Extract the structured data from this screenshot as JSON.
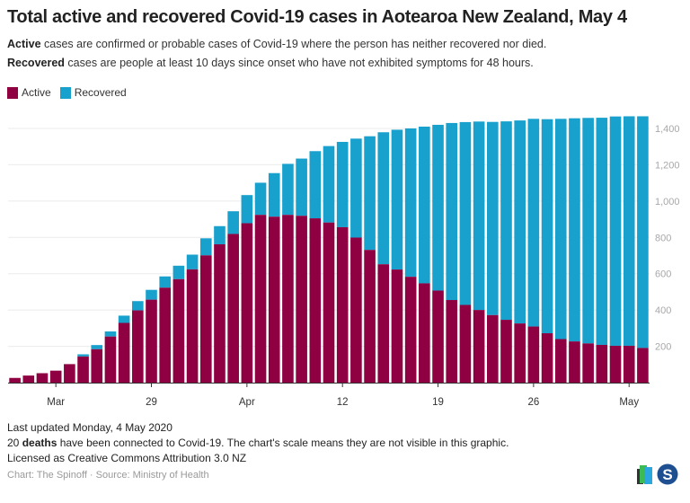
{
  "title": "Total active and recovered Covid-19 cases in Aotearoa New Zealand, May 4",
  "subtitle": {
    "line1_bold": "Active",
    "line1_rest": " cases are confirmed or probable cases of Covid-19 where the person has neither recovered nor died.",
    "line2_bold": "Recovered",
    "line2_rest": " cases are people at least 10 days since onset who have not exhibited symptoms for 48 hours."
  },
  "footer": {
    "updated": "Last updated Monday, 4 May 2020",
    "deaths_count": "20 ",
    "deaths_bold": "deaths",
    "deaths_rest": " have been connected to Covid-19. The chart's scale means they are not visible in this graphic.",
    "license": "Licensed as Creative Commons Attribution 3.0 NZ",
    "credit": "Chart: The Spinoff · Source: Ministry of Health"
  },
  "logos": [
    "datawrapper-style-icon",
    "spinoff-s-logo"
  ],
  "colors": {
    "active": "#8e0041",
    "recovered": "#18a1cd",
    "grid": "#ebebeb",
    "axis": "#333333",
    "tick_label": "#a8a8a8"
  },
  "chart_data": {
    "type": "bar",
    "stacked": true,
    "legend": "top-left",
    "grid": true,
    "ylim": [
      0,
      1400
    ],
    "yticks": [
      200,
      400,
      600,
      800,
      1000,
      1200,
      1400
    ],
    "ytick_labels": [
      "200",
      "400",
      "600",
      "800",
      "1,000",
      "1,200",
      "1,400"
    ],
    "yaxis_position": "right",
    "categories": [
      "2020-03-19",
      "2020-03-20",
      "2020-03-21",
      "2020-03-22",
      "2020-03-23",
      "2020-03-24",
      "2020-03-25",
      "2020-03-26",
      "2020-03-27",
      "2020-03-28",
      "2020-03-29",
      "2020-03-30",
      "2020-03-31",
      "2020-04-01",
      "2020-04-02",
      "2020-04-03",
      "2020-04-04",
      "2020-04-05",
      "2020-04-06",
      "2020-04-07",
      "2020-04-08",
      "2020-04-09",
      "2020-04-10",
      "2020-04-11",
      "2020-04-12",
      "2020-04-13",
      "2020-04-14",
      "2020-04-15",
      "2020-04-16",
      "2020-04-17",
      "2020-04-18",
      "2020-04-19",
      "2020-04-20",
      "2020-04-21",
      "2020-04-22",
      "2020-04-23",
      "2020-04-24",
      "2020-04-25",
      "2020-04-26",
      "2020-04-27",
      "2020-04-28",
      "2020-04-29",
      "2020-04-30",
      "2020-05-01",
      "2020-05-02",
      "2020-05-03",
      "2020-05-04"
    ],
    "xticks": [
      {
        "category": "2020-03-22",
        "label": "Mar"
      },
      {
        "category": "2020-03-29",
        "label": "29"
      },
      {
        "category": "2020-04-05",
        "label": "Apr"
      },
      {
        "category": "2020-04-12",
        "label": "12"
      },
      {
        "category": "2020-04-19",
        "label": "19"
      },
      {
        "category": "2020-04-26",
        "label": "26"
      },
      {
        "category": "2020-05-03",
        "label": "May"
      }
    ],
    "series": [
      {
        "name": "Active",
        "values": [
          26,
          39,
          52,
          66,
          102,
          144,
          184,
          254,
          329,
          398,
          457,
          523,
          570,
          624,
          701,
          762,
          819,
          878,
          924,
          914,
          924,
          919,
          905,
          882,
          856,
          799,
          731,
          652,
          623,
          583,
          547,
          507,
          455,
          428,
          400,
          372,
          346,
          326,
          309,
          272,
          240,
          227,
          216,
          208,
          203,
          203,
          191
        ]
      },
      {
        "name": "Recovered",
        "values": [
          0,
          0,
          0,
          0,
          0,
          12,
          23,
          28,
          40,
          51,
          54,
          62,
          74,
          81,
          94,
          100,
          125,
          155,
          177,
          240,
          281,
          315,
          370,
          421,
          470,
          545,
          626,
          727,
          770,
          817,
          863,
          913,
          975,
          1007,
          1038,
          1064,
          1093,
          1118,
          1144,
          1179,
          1213,
          1229,
          1242,
          1251,
          1263,
          1264,
          1276
        ]
      }
    ]
  }
}
